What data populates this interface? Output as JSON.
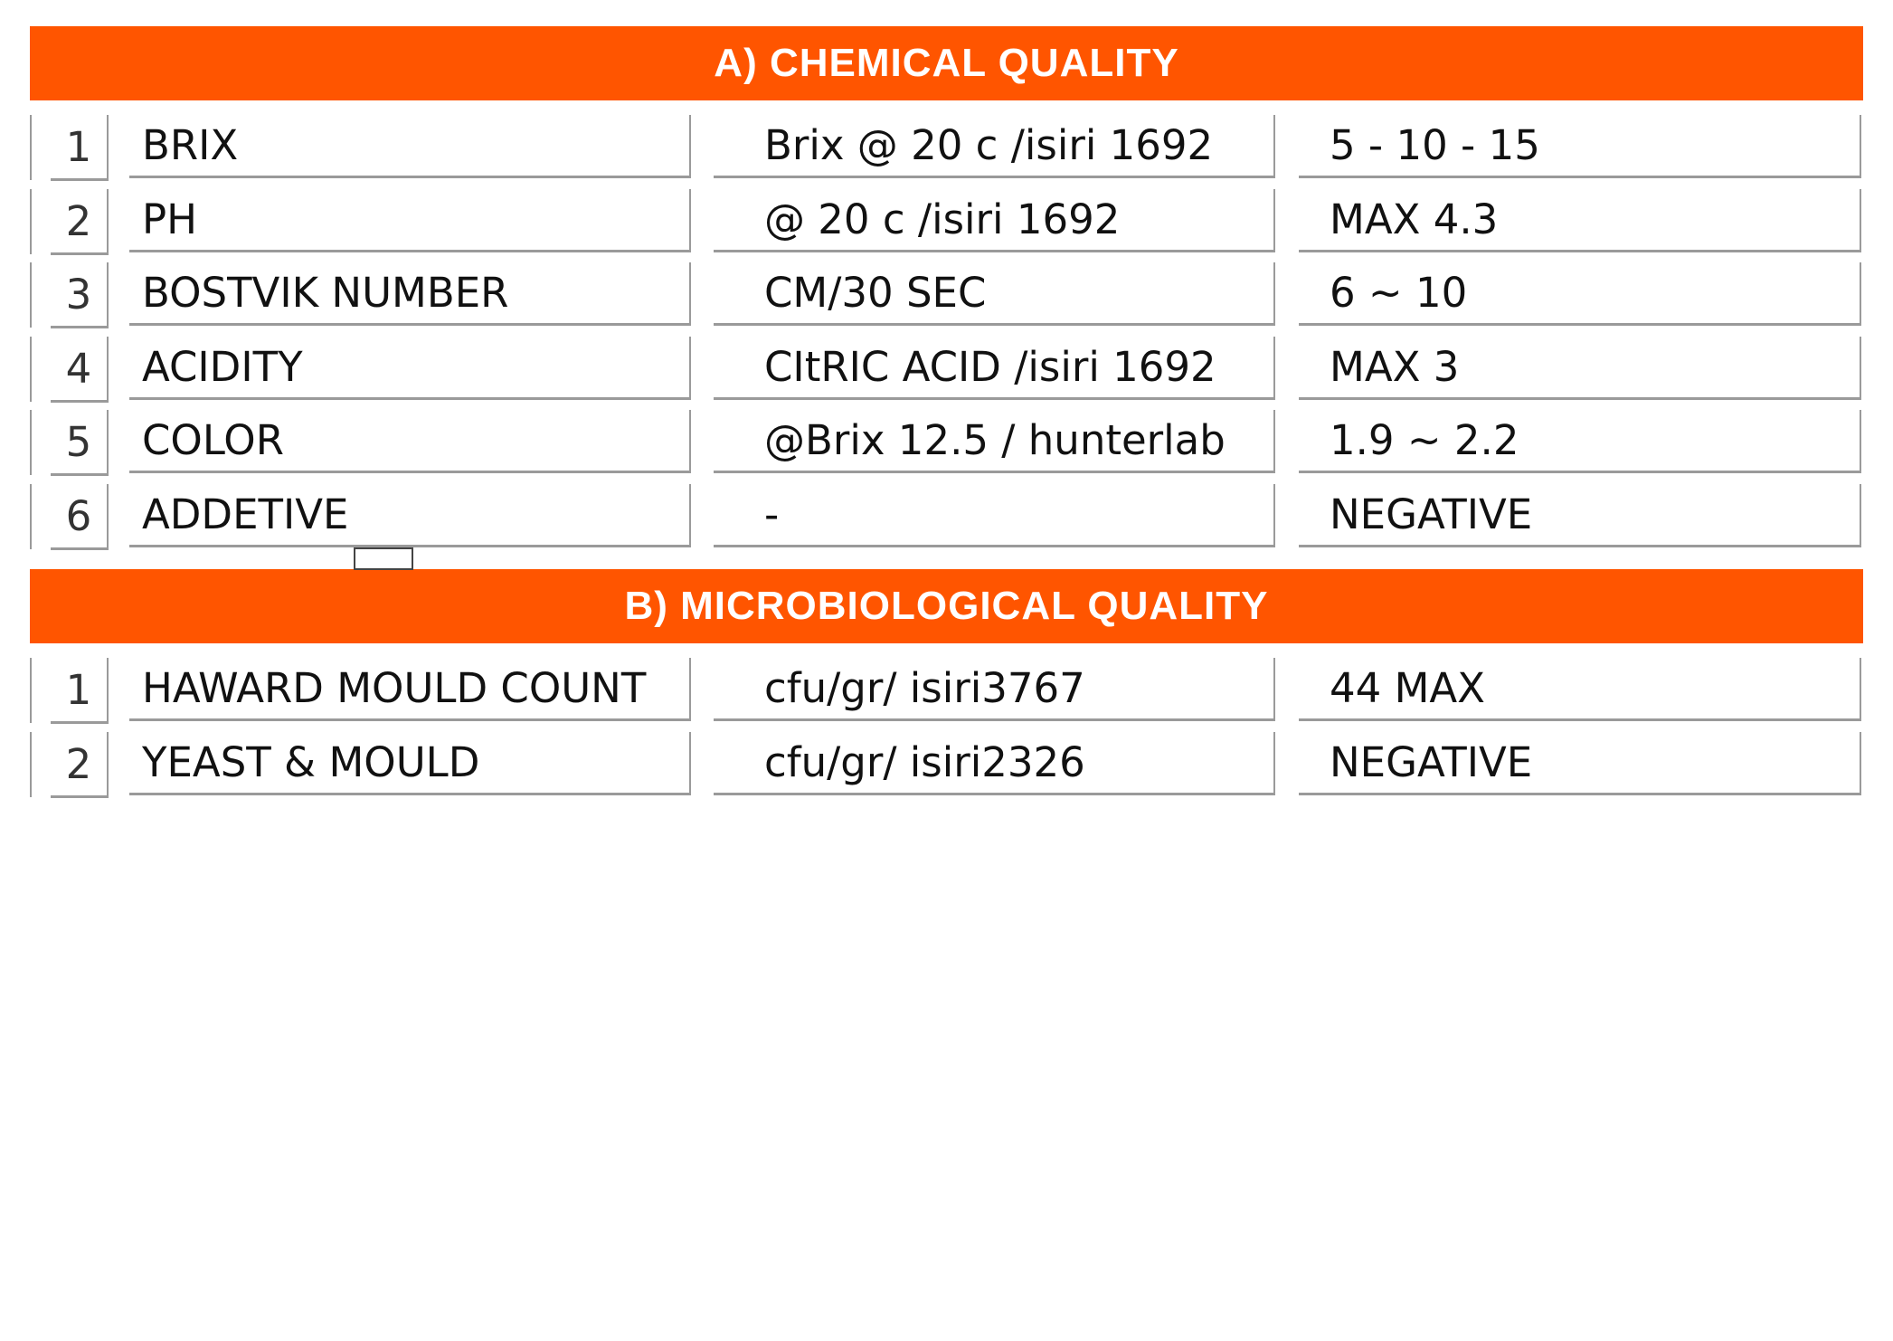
{
  "colors": {
    "header_bg": "#ff5500",
    "header_text": "#ffffff",
    "border": "#9a9a9a"
  },
  "sections": [
    {
      "title": "A) CHEMICAL QUALITY",
      "rows": [
        {
          "num": "1",
          "name": "BRIX",
          "method": "Brix @ 20 c /isiri 1692",
          "value": "5 - 10 - 15"
        },
        {
          "num": "2",
          "name": "PH",
          "method": "@ 20 c /isiri 1692",
          "value": "MAX 4.3"
        },
        {
          "num": "3",
          "name": "BOSTVIK NUMBER",
          "method": "CM/30 SEC",
          "value": "6 ~ 10"
        },
        {
          "num": "4",
          "name": "ACIDITY",
          "method": "CItRIC ACID /isiri 1692",
          "value": "MAX 3"
        },
        {
          "num": "5",
          "name": "COLOR",
          "method": "@Brix 12.5 / hunterlab",
          "value": "1.9 ~ 2.2"
        },
        {
          "num": "6",
          "name": "ADDETIVE",
          "method": "-",
          "value": "NEGATIVE"
        }
      ]
    },
    {
      "title": "B) MICROBIOLOGICAL QUALITY",
      "rows": [
        {
          "num": "1",
          "name": "HAWARD MOULD COUNT",
          "method": "cfu/gr/ isiri3767",
          "value": "44 MAX"
        },
        {
          "num": "2",
          "name": "YEAST & MOULD",
          "method": "cfu/gr/ isiri2326",
          "value": "NEGATIVE"
        }
      ]
    }
  ]
}
